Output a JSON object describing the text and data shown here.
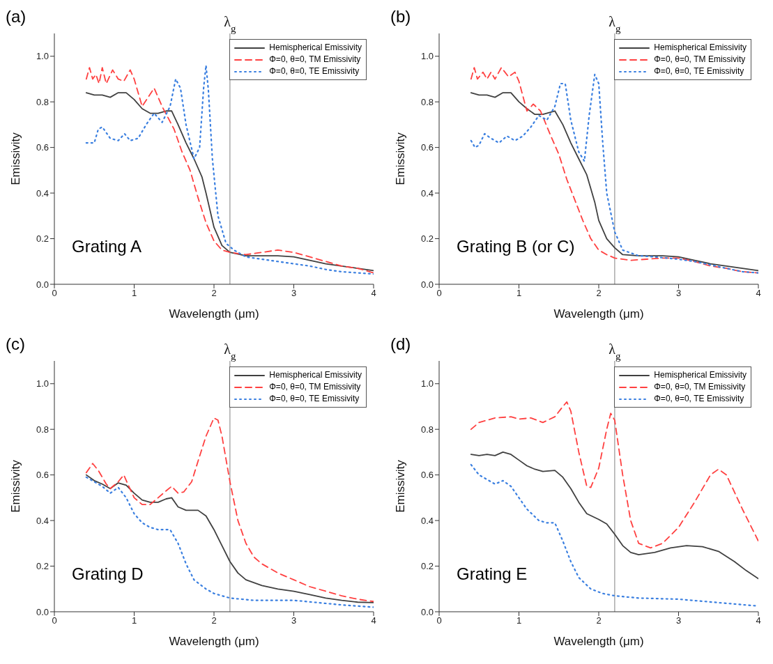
{
  "chart_data": [
    {
      "type": "line",
      "title": "(a)",
      "xlabel": "Wavelength (μm)",
      "ylabel": "Emissivity",
      "annotations": [
        "Grating A"
      ],
      "xlim": [
        0,
        4
      ],
      "xticks": [
        0,
        1,
        2,
        3,
        4
      ],
      "ylim": [
        0,
        1.1
      ],
      "yticks": [
        {
          "value": 0,
          "label": "0.0"
        },
        {
          "value": 0.2,
          "label": "0.2"
        },
        {
          "value": 0.4,
          "label": "0.4"
        },
        {
          "value": 0.6,
          "label": "0.6"
        },
        {
          "value": 0.8,
          "label": "0.8"
        },
        {
          "value": 1.0,
          "label": "1.0"
        }
      ],
      "legend": "top right",
      "marker": "none",
      "ref_lines": [
        {
          "axis": "x",
          "value": 2.2,
          "label": "λ$_{g}$",
          "color": "#808080"
        }
      ],
      "series": [
        {
          "name": "Hemispherical Emissivity",
          "color": "#404040",
          "line_style": "solid",
          "x": [
            0.4,
            0.5,
            0.6,
            0.7,
            0.8,
            0.9,
            1.0,
            1.1,
            1.2,
            1.3,
            1.4,
            1.47,
            1.55,
            1.65,
            1.75,
            1.85,
            1.9,
            2.0,
            2.1,
            2.2,
            2.4,
            2.6,
            2.8,
            3.0,
            3.2,
            3.4,
            3.6,
            3.8,
            4.0
          ],
          "values": [
            0.84,
            0.83,
            0.83,
            0.82,
            0.84,
            0.84,
            0.81,
            0.77,
            0.75,
            0.75,
            0.76,
            0.76,
            0.7,
            0.62,
            0.55,
            0.47,
            0.4,
            0.25,
            0.17,
            0.14,
            0.125,
            0.125,
            0.125,
            0.12,
            0.105,
            0.09,
            0.08,
            0.07,
            0.06
          ]
        },
        {
          "name": "Φ=0, θ=0, TM Emissivity",
          "color": "#ff4040",
          "line_style": "dashed",
          "x": [
            0.4,
            0.44,
            0.48,
            0.52,
            0.56,
            0.6,
            0.65,
            0.73,
            0.8,
            0.87,
            0.95,
            1.0,
            1.1,
            1.25,
            1.35,
            1.5,
            1.6,
            1.7,
            1.8,
            1.9,
            2.0,
            2.1,
            2.2,
            2.4,
            2.6,
            2.8,
            3.0,
            3.2,
            3.4,
            3.6,
            3.8,
            4.0
          ],
          "values": [
            0.9,
            0.95,
            0.9,
            0.92,
            0.88,
            0.95,
            0.88,
            0.94,
            0.9,
            0.89,
            0.94,
            0.9,
            0.78,
            0.86,
            0.78,
            0.68,
            0.58,
            0.5,
            0.38,
            0.27,
            0.19,
            0.15,
            0.14,
            0.13,
            0.14,
            0.15,
            0.14,
            0.12,
            0.1,
            0.08,
            0.07,
            0.05
          ]
        },
        {
          "name": "Φ=0, θ=0, TE Emissivity",
          "color": "#3a7fe0",
          "line_style": "dotted",
          "x": [
            0.4,
            0.5,
            0.55,
            0.6,
            0.7,
            0.8,
            0.88,
            0.95,
            1.05,
            1.15,
            1.25,
            1.35,
            1.45,
            1.52,
            1.58,
            1.65,
            1.75,
            1.82,
            1.87,
            1.9,
            1.93,
            1.98,
            2.05,
            2.15,
            2.25,
            2.4,
            2.6,
            2.8,
            3.0,
            3.2,
            3.4,
            3.6,
            3.8,
            4.0
          ],
          "values": [
            0.62,
            0.62,
            0.68,
            0.69,
            0.64,
            0.63,
            0.66,
            0.63,
            0.64,
            0.7,
            0.75,
            0.71,
            0.78,
            0.9,
            0.86,
            0.7,
            0.55,
            0.6,
            0.86,
            0.96,
            0.85,
            0.55,
            0.3,
            0.18,
            0.15,
            0.12,
            0.11,
            0.1,
            0.09,
            0.08,
            0.065,
            0.055,
            0.05,
            0.045
          ]
        }
      ]
    },
    {
      "type": "line",
      "title": "(b)",
      "xlabel": "Wavelength (μm)",
      "ylabel": "Emissivity",
      "annotations": [
        "Grating B (or C)"
      ],
      "xlim": [
        0,
        4
      ],
      "xticks": [
        0,
        1,
        2,
        3,
        4
      ],
      "ylim": [
        0,
        1.1
      ],
      "yticks": [
        {
          "value": 0,
          "label": "0.0"
        },
        {
          "value": 0.2,
          "label": "0.2"
        },
        {
          "value": 0.4,
          "label": "0.4"
        },
        {
          "value": 0.6,
          "label": "0.6"
        },
        {
          "value": 0.8,
          "label": "0.8"
        },
        {
          "value": 1.0,
          "label": "1.0"
        }
      ],
      "legend": "top right",
      "marker": "none",
      "ref_lines": [
        {
          "axis": "x",
          "value": 2.2,
          "label": "λ$_{g}$",
          "color": "#808080"
        }
      ],
      "series": [
        {
          "name": "Hemispherical Emissivity",
          "color": "#404040",
          "line_style": "solid",
          "x": [
            0.4,
            0.5,
            0.6,
            0.7,
            0.8,
            0.9,
            1.0,
            1.1,
            1.2,
            1.3,
            1.45,
            1.55,
            1.65,
            1.75,
            1.85,
            1.95,
            2.0,
            2.1,
            2.2,
            2.3,
            2.5,
            2.8,
            3.0,
            3.2,
            3.4,
            3.6,
            3.8,
            4.0
          ],
          "values": [
            0.84,
            0.83,
            0.83,
            0.82,
            0.84,
            0.84,
            0.8,
            0.77,
            0.745,
            0.745,
            0.76,
            0.7,
            0.62,
            0.55,
            0.48,
            0.36,
            0.28,
            0.2,
            0.16,
            0.13,
            0.125,
            0.125,
            0.12,
            0.105,
            0.09,
            0.08,
            0.07,
            0.06
          ]
        },
        {
          "name": "Φ=0, θ=0, TM Emissivity",
          "color": "#ff4040",
          "line_style": "dashed",
          "x": [
            0.4,
            0.44,
            0.48,
            0.55,
            0.6,
            0.65,
            0.7,
            0.78,
            0.87,
            0.95,
            1.0,
            1.1,
            1.18,
            1.27,
            1.4,
            1.5,
            1.6,
            1.7,
            1.8,
            1.9,
            2.0,
            2.1,
            2.2,
            2.4,
            2.6,
            2.8,
            3.0,
            3.2,
            3.4,
            3.6,
            3.8,
            4.0
          ],
          "values": [
            0.9,
            0.95,
            0.9,
            0.93,
            0.9,
            0.93,
            0.9,
            0.95,
            0.91,
            0.93,
            0.89,
            0.76,
            0.79,
            0.76,
            0.65,
            0.57,
            0.46,
            0.37,
            0.28,
            0.2,
            0.15,
            0.13,
            0.115,
            0.105,
            0.11,
            0.115,
            0.115,
            0.1,
            0.08,
            0.07,
            0.055,
            0.05
          ]
        },
        {
          "name": "Φ=0, θ=0, TE Emissivity",
          "color": "#3a7fe0",
          "line_style": "dotted",
          "x": [
            0.4,
            0.45,
            0.5,
            0.57,
            0.65,
            0.75,
            0.85,
            0.95,
            1.05,
            1.15,
            1.25,
            1.35,
            1.45,
            1.52,
            1.58,
            1.65,
            1.75,
            1.82,
            1.88,
            1.95,
            2.0,
            2.05,
            2.1,
            2.2,
            2.3,
            2.5,
            2.7,
            3.0,
            3.2,
            3.4,
            3.6,
            3.8,
            4.0
          ],
          "values": [
            0.63,
            0.6,
            0.61,
            0.66,
            0.64,
            0.62,
            0.65,
            0.63,
            0.65,
            0.69,
            0.74,
            0.72,
            0.78,
            0.88,
            0.88,
            0.72,
            0.58,
            0.54,
            0.74,
            0.92,
            0.88,
            0.62,
            0.4,
            0.23,
            0.15,
            0.125,
            0.12,
            0.11,
            0.1,
            0.085,
            0.07,
            0.055,
            0.05
          ]
        }
      ]
    },
    {
      "type": "line",
      "title": "(c)",
      "xlabel": "Wavelength (μm)",
      "ylabel": "Emissivity",
      "annotations": [
        "Grating D"
      ],
      "xlim": [
        0,
        4
      ],
      "xticks": [
        0,
        1,
        2,
        3,
        4
      ],
      "ylim": [
        0,
        1.1
      ],
      "yticks": [
        {
          "value": 0,
          "label": "0.0"
        },
        {
          "value": 0.2,
          "label": "0.2"
        },
        {
          "value": 0.4,
          "label": "0.4"
        },
        {
          "value": 0.6,
          "label": "0.6"
        },
        {
          "value": 0.8,
          "label": "0.8"
        },
        {
          "value": 1.0,
          "label": "1.0"
        }
      ],
      "legend": "top right",
      "marker": "none",
      "ref_lines": [
        {
          "axis": "x",
          "value": 2.2,
          "label": "λ$_{g}$",
          "color": "#808080"
        }
      ],
      "series": [
        {
          "name": "Hemispherical Emissivity",
          "color": "#404040",
          "line_style": "solid",
          "x": [
            0.4,
            0.5,
            0.6,
            0.7,
            0.8,
            0.9,
            1.0,
            1.1,
            1.2,
            1.3,
            1.4,
            1.47,
            1.55,
            1.65,
            1.8,
            1.9,
            2.0,
            2.1,
            2.2,
            2.3,
            2.4,
            2.6,
            2.8,
            3.0,
            3.2,
            3.4,
            3.6,
            3.8,
            4.0
          ],
          "values": [
            0.6,
            0.575,
            0.56,
            0.54,
            0.565,
            0.555,
            0.52,
            0.49,
            0.48,
            0.48,
            0.495,
            0.5,
            0.46,
            0.445,
            0.445,
            0.42,
            0.36,
            0.29,
            0.22,
            0.17,
            0.14,
            0.115,
            0.1,
            0.09,
            0.075,
            0.06,
            0.05,
            0.042,
            0.04
          ]
        },
        {
          "name": "Φ=0, θ=0, TM Emissivity",
          "color": "#ff4040",
          "line_style": "dashed",
          "x": [
            0.4,
            0.48,
            0.55,
            0.65,
            0.7,
            0.8,
            0.87,
            0.92,
            1.0,
            1.1,
            1.2,
            1.3,
            1.4,
            1.47,
            1.55,
            1.62,
            1.72,
            1.8,
            1.9,
            2.0,
            2.05,
            2.1,
            2.2,
            2.3,
            2.4,
            2.5,
            2.6,
            2.8,
            3.0,
            3.2,
            3.4,
            3.6,
            3.8,
            4.0
          ],
          "values": [
            0.61,
            0.65,
            0.62,
            0.56,
            0.54,
            0.57,
            0.6,
            0.56,
            0.5,
            0.47,
            0.47,
            0.5,
            0.53,
            0.55,
            0.52,
            0.525,
            0.57,
            0.66,
            0.77,
            0.85,
            0.84,
            0.77,
            0.57,
            0.4,
            0.3,
            0.24,
            0.21,
            0.17,
            0.14,
            0.11,
            0.09,
            0.07,
            0.055,
            0.045
          ]
        },
        {
          "name": "Φ=0, θ=0, TE Emissivity",
          "color": "#3a7fe0",
          "line_style": "dotted",
          "x": [
            0.4,
            0.5,
            0.6,
            0.7,
            0.8,
            0.9,
            1.0,
            1.1,
            1.2,
            1.3,
            1.45,
            1.55,
            1.65,
            1.75,
            1.9,
            2.0,
            2.2,
            2.5,
            3.0,
            3.3,
            3.6,
            4.0
          ],
          "values": [
            0.59,
            0.57,
            0.55,
            0.52,
            0.545,
            0.5,
            0.43,
            0.39,
            0.37,
            0.36,
            0.36,
            0.3,
            0.21,
            0.14,
            0.1,
            0.08,
            0.06,
            0.05,
            0.05,
            0.04,
            0.03,
            0.02
          ]
        }
      ]
    },
    {
      "type": "line",
      "title": "(d)",
      "xlabel": "Wavelength (μm)",
      "ylabel": "Emissivity",
      "annotations": [
        "Grating E"
      ],
      "xlim": [
        0,
        4
      ],
      "xticks": [
        0,
        1,
        2,
        3,
        4
      ],
      "ylim": [
        0,
        1.1
      ],
      "yticks": [
        {
          "value": 0,
          "label": "0.0"
        },
        {
          "value": 0.2,
          "label": "0.2"
        },
        {
          "value": 0.4,
          "label": "0.4"
        },
        {
          "value": 0.6,
          "label": "0.6"
        },
        {
          "value": 0.8,
          "label": "0.8"
        },
        {
          "value": 1.0,
          "label": "1.0"
        }
      ],
      "legend": "top right",
      "marker": "none",
      "ref_lines": [
        {
          "axis": "x",
          "value": 2.2,
          "label": "λ$_{g}$",
          "color": "#808080"
        }
      ],
      "series": [
        {
          "name": "Hemispherical Emissivity",
          "color": "#404040",
          "line_style": "solid",
          "x": [
            0.4,
            0.5,
            0.6,
            0.7,
            0.8,
            0.9,
            1.0,
            1.1,
            1.2,
            1.3,
            1.45,
            1.55,
            1.65,
            1.75,
            1.85,
            2.0,
            2.1,
            2.2,
            2.3,
            2.4,
            2.5,
            2.7,
            2.9,
            3.1,
            3.3,
            3.5,
            3.7,
            3.85,
            4.0
          ],
          "values": [
            0.69,
            0.685,
            0.69,
            0.685,
            0.7,
            0.69,
            0.665,
            0.64,
            0.625,
            0.615,
            0.62,
            0.59,
            0.54,
            0.48,
            0.43,
            0.405,
            0.385,
            0.34,
            0.29,
            0.26,
            0.25,
            0.26,
            0.28,
            0.29,
            0.285,
            0.265,
            0.22,
            0.18,
            0.145
          ]
        },
        {
          "name": "Φ=0, θ=0, TM Emissivity",
          "color": "#ff4040",
          "line_style": "dashed",
          "x": [
            0.4,
            0.5,
            0.7,
            0.9,
            1.0,
            1.15,
            1.3,
            1.45,
            1.55,
            1.6,
            1.65,
            1.75,
            1.85,
            1.9,
            2.0,
            2.1,
            2.15,
            2.2,
            2.3,
            2.4,
            2.5,
            2.65,
            2.8,
            3.0,
            3.2,
            3.4,
            3.5,
            3.6,
            3.8,
            4.0
          ],
          "values": [
            0.8,
            0.83,
            0.85,
            0.855,
            0.845,
            0.85,
            0.83,
            0.855,
            0.9,
            0.92,
            0.88,
            0.7,
            0.55,
            0.545,
            0.63,
            0.8,
            0.87,
            0.84,
            0.6,
            0.4,
            0.3,
            0.28,
            0.3,
            0.37,
            0.48,
            0.6,
            0.625,
            0.6,
            0.45,
            0.31
          ]
        },
        {
          "name": "Φ=0, θ=0, TE Emissivity",
          "color": "#3a7fe0",
          "line_style": "dotted",
          "x": [
            0.4,
            0.5,
            0.6,
            0.7,
            0.8,
            0.9,
            1.0,
            1.1,
            1.25,
            1.35,
            1.45,
            1.55,
            1.65,
            1.75,
            1.9,
            2.05,
            2.2,
            2.5,
            3.0,
            3.5,
            4.0
          ],
          "values": [
            0.645,
            0.6,
            0.58,
            0.56,
            0.575,
            0.55,
            0.5,
            0.45,
            0.4,
            0.39,
            0.39,
            0.31,
            0.22,
            0.15,
            0.1,
            0.08,
            0.07,
            0.06,
            0.055,
            0.04,
            0.025
          ]
        }
      ]
    }
  ]
}
